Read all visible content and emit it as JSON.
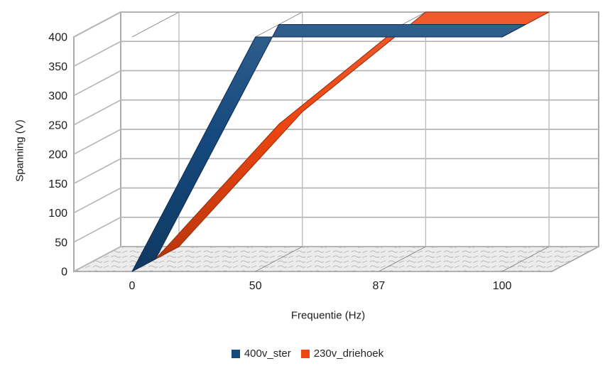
{
  "chart_data": {
    "type": "line",
    "style_3d": "ribbon-deep",
    "title": "",
    "categories": [
      "0",
      "50",
      "87",
      "100"
    ],
    "series": [
      {
        "name": "400v_ster",
        "color": "#15497e",
        "values": [
          0,
          400,
          400,
          400
        ]
      },
      {
        "name": "230v_driehoek",
        "color": "#ee4611",
        "values": [
          0,
          230,
          400,
          400
        ]
      }
    ],
    "xlabel": "Frequentie (Hz)",
    "ylabel": "Spanning (V)",
    "ylim": [
      0,
      400
    ],
    "ytick_step": 50,
    "yticks": [
      "0",
      "50",
      "100",
      "150",
      "200",
      "250",
      "300",
      "350",
      "400"
    ],
    "grid": true,
    "legend_position": "bottom",
    "background": "#ffffff"
  }
}
